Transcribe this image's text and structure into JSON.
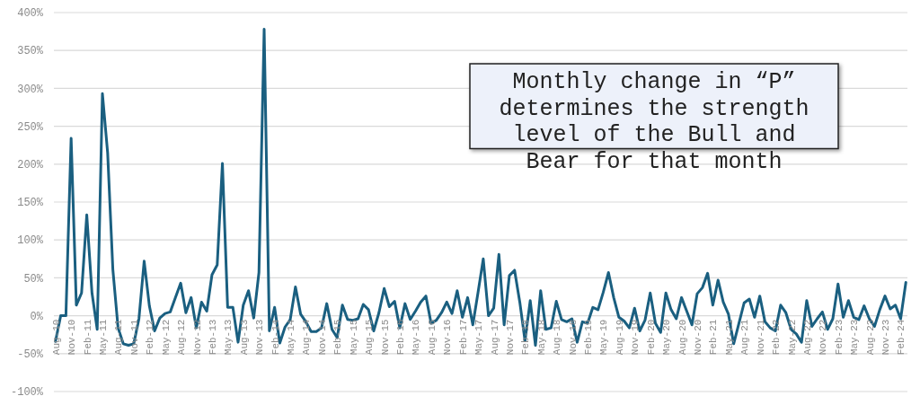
{
  "chart_data": {
    "type": "line",
    "categories": [
      "Aug-10",
      null,
      null,
      "Nov-10",
      null,
      null,
      "Feb-11",
      null,
      null,
      "May-11",
      null,
      null,
      "Aug-11",
      null,
      null,
      "Nov-11",
      null,
      null,
      "Feb-12",
      null,
      null,
      "May-12",
      null,
      null,
      "Aug-12",
      null,
      null,
      "Nov-12",
      null,
      null,
      "Feb-13",
      null,
      null,
      "May-13",
      null,
      null,
      "Aug-13",
      null,
      null,
      "Nov-13",
      null,
      null,
      "Feb-14",
      null,
      null,
      "May-14",
      null,
      null,
      "Aug-14",
      null,
      null,
      "Nov-14",
      null,
      null,
      "Feb-15",
      null,
      null,
      "May-15",
      null,
      null,
      "Aug-15",
      null,
      null,
      "Nov-15",
      null,
      null,
      "Feb-16",
      null,
      null,
      "May-16",
      null,
      null,
      "Aug-16",
      null,
      null,
      "Nov-16",
      null,
      null,
      "Feb-17",
      null,
      null,
      "May-17",
      null,
      null,
      "Aug-17",
      null,
      null,
      "Nov-17",
      null,
      null,
      "Feb-18",
      null,
      null,
      "May-18",
      null,
      null,
      "Aug-18",
      null,
      null,
      "Nov-18",
      null,
      null,
      "Feb-19",
      null,
      null,
      "May-19",
      null,
      null,
      "Aug-19",
      null,
      null,
      "Nov-19",
      null,
      null,
      "Feb-20",
      null,
      null,
      "May-20",
      null,
      null,
      "Aug-20",
      null,
      null,
      "Nov-20",
      null,
      null,
      "Feb-21",
      null,
      null,
      "May-21",
      null,
      null,
      "Aug-21",
      null,
      null,
      "Nov-21",
      null,
      null,
      "Feb-22",
      null,
      null,
      "May-22",
      null,
      null,
      "Aug-22",
      null,
      null,
      "Nov-22",
      null,
      null,
      "Feb-23",
      null,
      null,
      "May-23",
      null,
      null,
      "Aug-23",
      null,
      null,
      "Nov-23",
      null,
      null,
      "Feb-24",
      null
    ],
    "series": [
      {
        "color": "#1a5f80",
        "values": [
          -34,
          0,
          0,
          234,
          14,
          30,
          133,
          30,
          -18,
          293,
          215,
          61,
          -16,
          -37,
          -39,
          -37,
          -4,
          72,
          13,
          -20,
          -3,
          3,
          5,
          24,
          43,
          4,
          24,
          -16,
          18,
          6,
          54,
          67,
          201,
          11,
          11,
          -35,
          14,
          33,
          -3,
          57,
          378,
          -20,
          11,
          -36,
          -15,
          -5,
          38,
          2,
          -8,
          -21,
          -21,
          -16,
          16,
          -18,
          -29,
          14,
          -5,
          -6,
          -4,
          15,
          8,
          -20,
          4,
          36,
          12,
          19,
          -16,
          16,
          -5,
          6,
          18,
          26,
          -10,
          -6,
          4,
          18,
          3,
          33,
          -2,
          24,
          -12,
          31,
          75,
          0,
          10,
          81,
          -12,
          53,
          60,
          18,
          -33,
          20,
          -39,
          33,
          -18,
          -16,
          19,
          -5,
          -8,
          -4,
          -35,
          -8,
          -10,
          11,
          8,
          31,
          57,
          24,
          -2,
          -7,
          -16,
          10,
          -20,
          -6,
          30,
          -10,
          -22,
          30,
          8,
          -4,
          24,
          6,
          -12,
          29,
          37,
          56,
          14,
          47,
          18,
          2,
          -37,
          -10,
          17,
          22,
          -2,
          26,
          -8,
          -16,
          -20,
          14,
          4,
          -18,
          -24,
          -35,
          20,
          -14,
          -4,
          5,
          -18,
          -4,
          42,
          -2,
          20,
          -2,
          -5,
          13,
          -4,
          -14,
          8,
          26,
          9,
          14,
          -4,
          44
        ]
      }
    ],
    "ylim": [
      -100,
      400
    ],
    "yticks": [
      {
        "value": -100,
        "label": "-100%"
      },
      {
        "value": -50,
        "label": "-50%"
      },
      {
        "value": 0,
        "label": "0%"
      },
      {
        "value": 50,
        "label": "50%"
      },
      {
        "value": 100,
        "label": "100%"
      },
      {
        "value": 150,
        "label": "150%"
      },
      {
        "value": 200,
        "label": "200%"
      },
      {
        "value": 250,
        "label": "250%"
      },
      {
        "value": 300,
        "label": "300%"
      },
      {
        "value": 350,
        "label": "350%"
      },
      {
        "value": 400,
        "label": "400%"
      }
    ],
    "grid": "y",
    "marker": "none",
    "line_style": "solid",
    "annotations": [
      "Monthly change in “P” determines the strength level of the Bull and Bear for that month"
    ]
  }
}
